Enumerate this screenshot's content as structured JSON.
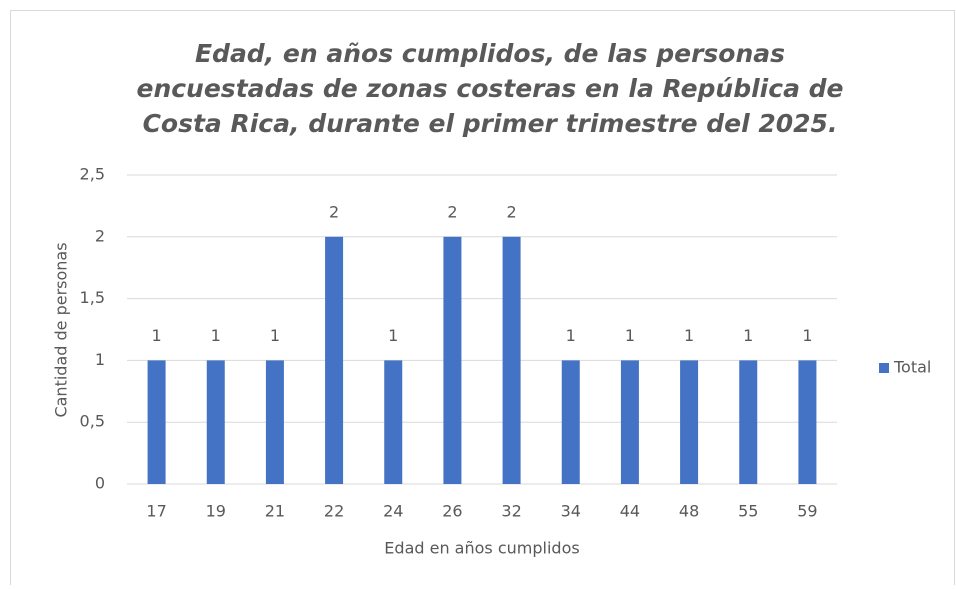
{
  "chart_data": {
    "type": "bar",
    "title": [
      "Edad, en años cumplidos, de las personas",
      "encuestadas de zonas costeras en la República de",
      "Costa Rica, durante el primer trimestre del 2025."
    ],
    "x_label": "Edad en años cumplidos",
    "y_label": "Cantidad de personas",
    "categories": [
      "17",
      "19",
      "21",
      "22",
      "24",
      "26",
      "32",
      "34",
      "44",
      "48",
      "55",
      "59"
    ],
    "series": [
      {
        "name": "Total",
        "color": "#4472c4",
        "values": [
          1,
          1,
          1,
          2,
          1,
          2,
          2,
          1,
          1,
          1,
          1,
          1
        ]
      }
    ],
    "ylim": [
      0,
      2.5
    ],
    "yticks": [
      0,
      {
        "value": 0.5,
        "label": "0,5"
      },
      1,
      {
        "value": 1.5,
        "label": "1,5"
      },
      2,
      {
        "value": 2.5,
        "label": "2,5"
      }
    ],
    "grid": true,
    "legend": "right"
  }
}
